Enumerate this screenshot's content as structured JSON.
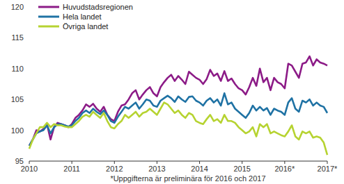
{
  "chart_data": {
    "type": "line",
    "categories": [
      "2010",
      null,
      null,
      null,
      null,
      null,
      null,
      null,
      null,
      null,
      null,
      null,
      "2011",
      null,
      null,
      null,
      null,
      null,
      null,
      null,
      null,
      null,
      null,
      null,
      "2012",
      null,
      null,
      null,
      null,
      null,
      null,
      null,
      null,
      null,
      null,
      null,
      "2013",
      null,
      null,
      null,
      null,
      null,
      null,
      null,
      null,
      null,
      null,
      null,
      "2014",
      null,
      null,
      null,
      null,
      null,
      null,
      null,
      null,
      null,
      null,
      null,
      "2015",
      null,
      null,
      null,
      null,
      null,
      null,
      null,
      null,
      null,
      null,
      null,
      "2016*",
      null,
      null,
      null,
      null,
      null,
      null,
      null,
      null,
      null,
      null,
      null,
      "2017*"
    ],
    "series": [
      {
        "name": "Huvudstadsregionen",
        "color": "#8c1b87",
        "values": [
          97.5,
          98.5,
          100,
          99.8,
          100.2,
          101,
          98.5,
          100.5,
          101.2,
          101,
          100.8,
          100.5,
          101,
          102,
          102.5,
          103.2,
          104.2,
          103.8,
          104.3,
          103.5,
          103,
          103.8,
          102.5,
          101.8,
          101.5,
          103,
          104,
          104.2,
          105,
          106,
          106.5,
          105,
          105.8,
          106.5,
          107,
          106,
          105.5,
          107,
          107.8,
          108.5,
          109,
          108,
          108.8,
          108.2,
          107.5,
          109.5,
          109,
          108.5,
          108.2,
          107.5,
          108.3,
          109.8,
          108.8,
          109.2,
          108,
          109.6,
          108,
          108.4,
          107.5,
          106.8,
          106.5,
          105.8,
          107,
          108.5,
          107.2,
          110,
          107.8,
          108.5,
          106.5,
          108.5,
          107.8,
          107.5,
          106.8,
          110.8,
          110.5,
          109.5,
          108.5,
          110.8,
          111,
          112,
          110.5,
          111.5,
          111,
          110.8,
          110.5
        ]
      },
      {
        "name": "Hela landet",
        "color": "#1f72a4",
        "values": [
          97.5,
          98.5,
          99.5,
          99.8,
          100,
          100.8,
          99.5,
          100.5,
          101,
          101,
          100.8,
          100.6,
          100.8,
          101.5,
          102,
          102.8,
          103.2,
          102.8,
          103.5,
          103,
          102.6,
          103.2,
          102.5,
          101.5,
          101.2,
          102.2,
          103,
          103.8,
          103.5,
          104,
          104.5,
          103.5,
          104.2,
          105,
          104.8,
          104,
          103.8,
          104.8,
          105.2,
          105.6,
          105.2,
          104.6,
          105.5,
          105,
          104.6,
          105.4,
          105.5,
          104.8,
          104.5,
          104,
          104.8,
          105.2,
          104.5,
          105,
          104,
          106,
          104.2,
          104.5,
          103.5,
          103,
          102.5,
          102,
          102.8,
          104,
          103.2,
          103.8,
          103.2,
          103.6,
          102.5,
          103.5,
          103.2,
          103,
          102.5,
          104.5,
          105.2,
          103.5,
          103,
          104.8,
          104.5,
          105,
          104,
          104.5,
          104,
          103.8,
          102.8
        ]
      },
      {
        "name": "Övriga landet",
        "color": "#b6d331",
        "values": [
          97,
          98.5,
          99.5,
          100.5,
          100.5,
          101.2,
          100.5,
          101,
          100.8,
          100.8,
          100.6,
          100.5,
          100.5,
          101,
          101.5,
          102.2,
          102.5,
          102.2,
          103,
          102.5,
          102,
          102.8,
          101.5,
          100.5,
          100.3,
          101,
          101.5,
          102.5,
          102,
          102.5,
          103,
          102.2,
          102.8,
          103,
          103.5,
          103,
          102.5,
          103.5,
          104.5,
          104.2,
          103.5,
          102.8,
          103.2,
          102.5,
          102,
          102.8,
          102.5,
          101.5,
          101.2,
          101,
          101.8,
          102.5,
          101.5,
          101.8,
          101.2,
          102.5,
          101.5,
          101.5,
          101.2,
          100.5,
          100,
          99.5,
          99.8,
          100.5,
          99,
          101,
          100.5,
          101,
          99.5,
          99.8,
          99.5,
          99.2,
          99,
          99.8,
          100.8,
          99,
          98.5,
          99.8,
          99.5,
          99.8,
          98.8,
          99,
          98.8,
          98,
          96
        ]
      }
    ],
    "ylim": [
      95,
      120
    ],
    "yticks": [
      95,
      100,
      105,
      110,
      115,
      120
    ],
    "grid": false,
    "legend": "top-left",
    "annotations": [
      "*Uppgifterna är preliminära för 2016 och 2017"
    ]
  }
}
